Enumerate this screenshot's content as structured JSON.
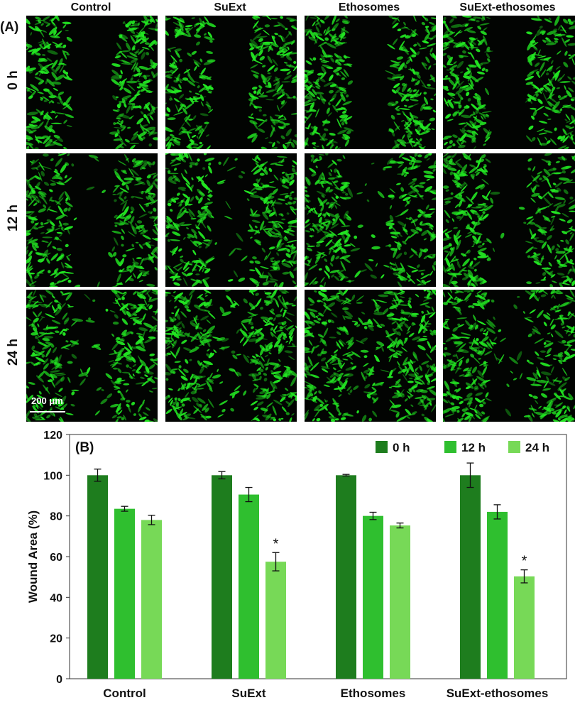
{
  "panel_a": {
    "label": "(A)",
    "columns": [
      "Control",
      "SuExt",
      "Ethosomes",
      "SuExt-ethosomes"
    ],
    "rows": [
      "0 h",
      "12 h",
      "24 h"
    ],
    "scale_bar": "200 μm",
    "fluorescence_color": "#22e622"
  },
  "chart_data": {
    "type": "bar",
    "panel_label": "(B)",
    "categories": [
      "Control",
      "SuExt",
      "Ethosomes",
      "SuExt-ethosomes"
    ],
    "series": [
      {
        "name": "0 h",
        "color": "#1e7d1e",
        "values": [
          100,
          100,
          100,
          100
        ],
        "errors": [
          3,
          1.8,
          0.4,
          6
        ]
      },
      {
        "name": "12 h",
        "color": "#2fbf2f",
        "values": [
          83.5,
          90.5,
          80,
          82
        ],
        "errors": [
          1.2,
          3.5,
          1.8,
          3.5
        ]
      },
      {
        "name": "24 h",
        "color": "#77d957",
        "values": [
          78,
          57.5,
          75.3,
          50.3
        ],
        "errors": [
          2.3,
          4.5,
          1.2,
          3.2
        ]
      }
    ],
    "significance": [
      {
        "category": "SuExt",
        "series": "24 h",
        "mark": "*"
      },
      {
        "category": "SuExt-ethosomes",
        "series": "24 h",
        "mark": "*"
      }
    ],
    "ylabel": "Wound Area (%)",
    "xlabel": "",
    "ylim": [
      0,
      120
    ],
    "yticks": [
      0,
      20,
      40,
      60,
      80,
      100,
      120
    ],
    "grid": false,
    "legend_position": "top-right"
  }
}
